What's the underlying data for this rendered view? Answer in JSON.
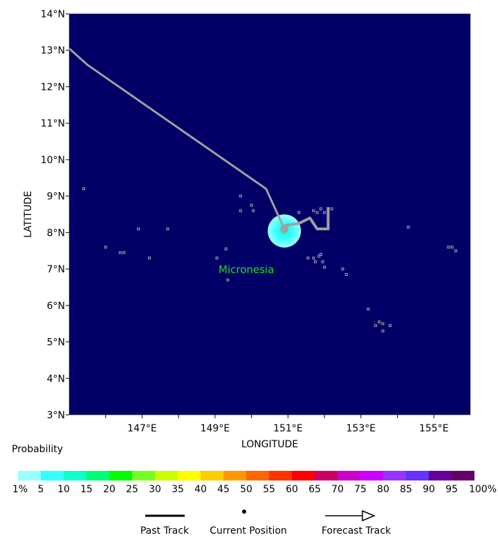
{
  "map": {
    "background_color": "#000066",
    "land_color": "#a8a8a8",
    "track_color": "#a0a0a0",
    "lat_labels": [
      "14°N",
      "13°N",
      "12°N",
      "11°N",
      "10°N",
      "9°N",
      "8°N",
      "7°N",
      "6°N",
      "5°N",
      "4°N",
      "3°N"
    ],
    "lon_labels": [
      "147°E",
      "149°E",
      "151°E",
      "153°E",
      "155°E"
    ],
    "x_axis_title": "LONGITUDE",
    "y_axis_title": "LATITUDE",
    "place_label": "Micronesia",
    "lon_range": [
      145,
      156
    ],
    "lat_range": [
      3,
      14
    ],
    "past_track": [
      [
        145.0,
        13.05
      ],
      [
        145.5,
        12.6
      ],
      [
        150.4,
        9.2
      ],
      [
        150.9,
        8.1
      ]
    ],
    "forecast_track": [
      [
        150.9,
        8.1
      ],
      [
        150.95,
        8.2
      ],
      [
        151.3,
        8.25
      ],
      [
        151.6,
        8.4
      ],
      [
        151.8,
        8.1
      ],
      [
        152.1,
        8.1
      ],
      [
        152.1,
        8.7
      ]
    ],
    "current_position": [
      150.9,
      8.1
    ]
  },
  "legend": {
    "probability_title": "Probability",
    "colorbar_colors": [
      "#99ffff",
      "#33ffff",
      "#11ffcc",
      "#00ff77",
      "#00ff00",
      "#77ff22",
      "#ccff00",
      "#ffff00",
      "#ffcc00",
      "#ff9900",
      "#ff6600",
      "#ff3300",
      "#ff0000",
      "#cc0066",
      "#cc00cc",
      "#cc00ff",
      "#9933ff",
      "#6633ff",
      "#660099",
      "#660066"
    ],
    "colorbar_labels": [
      "1%",
      "5",
      "10",
      "15",
      "20",
      "25",
      "30",
      "35",
      "40",
      "45",
      "50",
      "55",
      "60",
      "65",
      "70",
      "75",
      "80",
      "85",
      "90",
      "95",
      "100%"
    ],
    "past_track_label": "Past Track",
    "current_position_label": "Current Position",
    "forecast_track_label": "Forecast Track"
  }
}
